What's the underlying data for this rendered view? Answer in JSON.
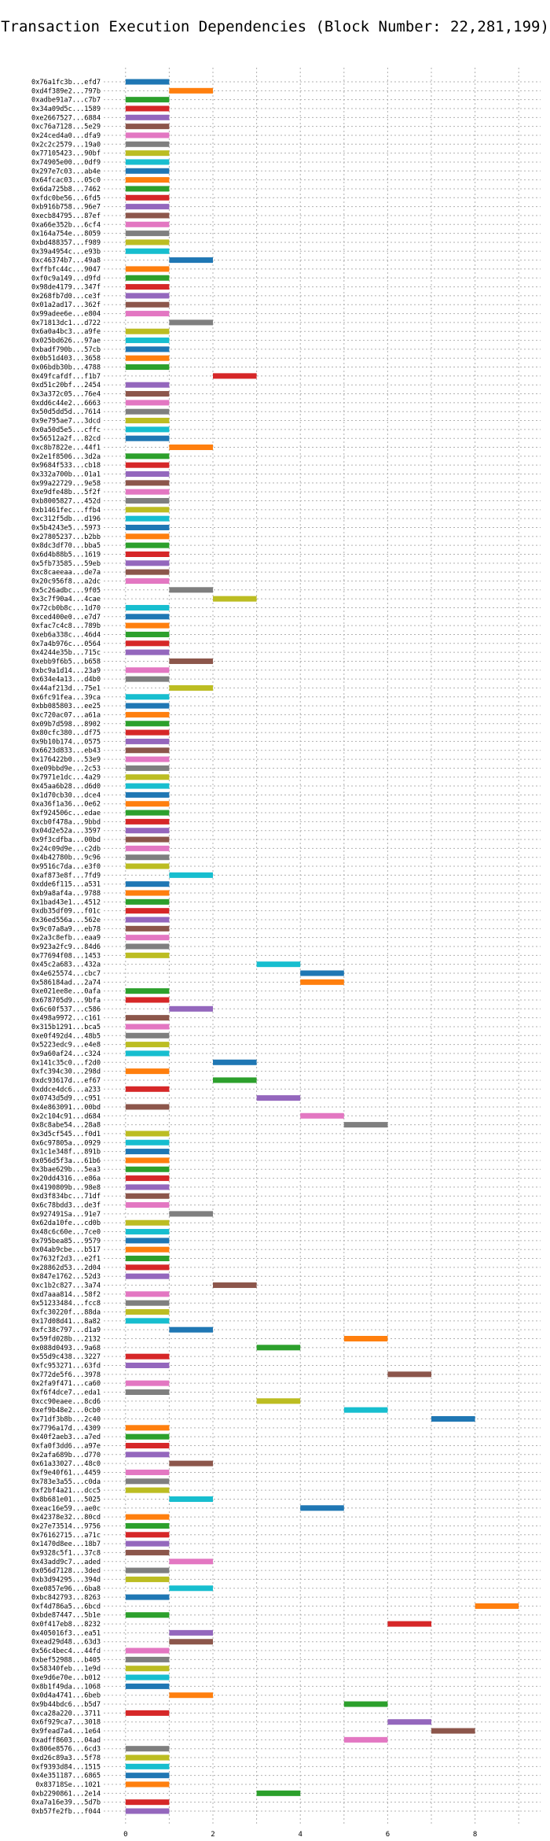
{
  "chart_data": {
    "type": "bar",
    "orientation": "horizontal-gantt",
    "title": "Transaction Execution Dependencies (Block Number: 22,281,199)",
    "xlabel": "",
    "ylabel": "",
    "xlim": [
      -0.5,
      9.5
    ],
    "x_ticks": [
      0,
      2,
      4,
      6,
      8
    ],
    "grid": true,
    "legend": "none",
    "palette": [
      "#1f77b4",
      "#ff7f0e",
      "#2ca02c",
      "#d62728",
      "#9467bd",
      "#8c564b",
      "#e377c2",
      "#7f7f7f",
      "#bcbd22",
      "#17becf"
    ],
    "bars": [
      {
        "tx": "0x76a1fc3b...efd7",
        "start": 0,
        "end": 1
      },
      {
        "tx": "0xd4f389e2...797b",
        "start": 1,
        "end": 2
      },
      {
        "tx": "0xadbe91a7...c7b7",
        "start": 0,
        "end": 1
      },
      {
        "tx": "0x34a09d5c...1589",
        "start": 0,
        "end": 1
      },
      {
        "tx": "0xe2667527...6884",
        "start": 0,
        "end": 1
      },
      {
        "tx": "0xc76a7128...5e29",
        "start": 0,
        "end": 1
      },
      {
        "tx": "0x24ced4a0...dfa9",
        "start": 0,
        "end": 1
      },
      {
        "tx": "0x2c2c2579...19a0",
        "start": 0,
        "end": 1
      },
      {
        "tx": "0x77105423...90bf",
        "start": 0,
        "end": 1
      },
      {
        "tx": "0x74905e00...0df9",
        "start": 0,
        "end": 1
      },
      {
        "tx": "0x297e7c03...ab4e",
        "start": 0,
        "end": 1
      },
      {
        "tx": "0x64fcac03...05c0",
        "start": 0,
        "end": 1
      },
      {
        "tx": "0x6da725b8...7462",
        "start": 0,
        "end": 1
      },
      {
        "tx": "0xfdc0be56...6fd5",
        "start": 0,
        "end": 1
      },
      {
        "tx": "0xb916b758...96e7",
        "start": 0,
        "end": 1
      },
      {
        "tx": "0xecb84795...87ef",
        "start": 0,
        "end": 1
      },
      {
        "tx": "0xa66e352b...6cf4",
        "start": 0,
        "end": 1
      },
      {
        "tx": "0x164a754e...8059",
        "start": 0,
        "end": 1
      },
      {
        "tx": "0xbd488357...f989",
        "start": 0,
        "end": 1
      },
      {
        "tx": "0x39a4954c...e93b",
        "start": 0,
        "end": 1
      },
      {
        "tx": "0xc46374b7...49a8",
        "start": 1,
        "end": 2
      },
      {
        "tx": "0xffbfc44c...9047",
        "start": 0,
        "end": 1
      },
      {
        "tx": "0xf0c9a149...d9fd",
        "start": 0,
        "end": 1
      },
      {
        "tx": "0x98de4179...347f",
        "start": 0,
        "end": 1
      },
      {
        "tx": "0x268fb7d0...ce3f",
        "start": 0,
        "end": 1
      },
      {
        "tx": "0x01a2ad17...362f",
        "start": 0,
        "end": 1
      },
      {
        "tx": "0x99adee6e...e804",
        "start": 0,
        "end": 1
      },
      {
        "tx": "0x71813dc1...d722",
        "start": 1,
        "end": 2
      },
      {
        "tx": "0x6a0a4bc3...a9fe",
        "start": 0,
        "end": 1
      },
      {
        "tx": "0x025bd626...97ae",
        "start": 0,
        "end": 1
      },
      {
        "tx": "0xbadf790b...57cb",
        "start": 0,
        "end": 1
      },
      {
        "tx": "0x0b51d403...3658",
        "start": 0,
        "end": 1
      },
      {
        "tx": "0x06bdb30b...4788",
        "start": 0,
        "end": 1
      },
      {
        "tx": "0x49fcafdf...f1b7",
        "start": 2,
        "end": 3
      },
      {
        "tx": "0xd51c20bf...2454",
        "start": 0,
        "end": 1
      },
      {
        "tx": "0x3a372c05...76e4",
        "start": 0,
        "end": 1
      },
      {
        "tx": "0xdd6c44e2...6663",
        "start": 0,
        "end": 1
      },
      {
        "tx": "0x50d5dd5d...7614",
        "start": 0,
        "end": 1
      },
      {
        "tx": "0x9e795ae7...3dcd",
        "start": 0,
        "end": 1
      },
      {
        "tx": "0x0a50d5e5...cffc",
        "start": 0,
        "end": 1
      },
      {
        "tx": "0x56512a2f...82cd",
        "start": 0,
        "end": 1
      },
      {
        "tx": "0xc8b7822e...44f1",
        "start": 1,
        "end": 2
      },
      {
        "tx": "0x2e1f8506...3d2a",
        "start": 0,
        "end": 1
      },
      {
        "tx": "0x9684f533...cb18",
        "start": 0,
        "end": 1
      },
      {
        "tx": "0x332a700b...01a1",
        "start": 0,
        "end": 1
      },
      {
        "tx": "0x99a22729...9e58",
        "start": 0,
        "end": 1
      },
      {
        "tx": "0xe9dfe48b...5f2f",
        "start": 0,
        "end": 1
      },
      {
        "tx": "0xb8005827...452d",
        "start": 0,
        "end": 1
      },
      {
        "tx": "0xb1461fec...ffb4",
        "start": 0,
        "end": 1
      },
      {
        "tx": "0xc312f5db...d196",
        "start": 0,
        "end": 1
      },
      {
        "tx": "0x5b4243e5...5973",
        "start": 0,
        "end": 1
      },
      {
        "tx": "0x27805237...b2bb",
        "start": 0,
        "end": 1
      },
      {
        "tx": "0x8dc3df70...bba5",
        "start": 0,
        "end": 1
      },
      {
        "tx": "0x6d4b88b5...1619",
        "start": 0,
        "end": 1
      },
      {
        "tx": "0x5fb73585...59eb",
        "start": 0,
        "end": 1
      },
      {
        "tx": "0xc8caeeaa...de7a",
        "start": 0,
        "end": 1
      },
      {
        "tx": "0x20c956f8...a2dc",
        "start": 0,
        "end": 1
      },
      {
        "tx": "0x5c26adbc...9f05",
        "start": 1,
        "end": 2
      },
      {
        "tx": "0x3c7f90a4...4cae",
        "start": 2,
        "end": 3
      },
      {
        "tx": "0x72cb0b8c...1d70",
        "start": 0,
        "end": 1
      },
      {
        "tx": "0xced400e0...e7d7",
        "start": 0,
        "end": 1
      },
      {
        "tx": "0xfac7c4c8...789b",
        "start": 0,
        "end": 1
      },
      {
        "tx": "0xeb6a338c...46d4",
        "start": 0,
        "end": 1
      },
      {
        "tx": "0x7a4b976c...0564",
        "start": 0,
        "end": 1
      },
      {
        "tx": "0x4244e35b...715c",
        "start": 0,
        "end": 1
      },
      {
        "tx": "0xebb9f6b5...b658",
        "start": 1,
        "end": 2
      },
      {
        "tx": "0xbc9a1d14...23a9",
        "start": 0,
        "end": 1
      },
      {
        "tx": "0x634e4a13...d4b0",
        "start": 0,
        "end": 1
      },
      {
        "tx": "0x44af213d...75e1",
        "start": 1,
        "end": 2
      },
      {
        "tx": "0x6fc91fea...39ca",
        "start": 0,
        "end": 1
      },
      {
        "tx": "0xbb085803...ee25",
        "start": 0,
        "end": 1
      },
      {
        "tx": "0xc720ac07...a61a",
        "start": 0,
        "end": 1
      },
      {
        "tx": "0x09b7d598...8902",
        "start": 0,
        "end": 1
      },
      {
        "tx": "0x80cfc380...df75",
        "start": 0,
        "end": 1
      },
      {
        "tx": "0x9b10b174...0575",
        "start": 0,
        "end": 1
      },
      {
        "tx": "0x6623d833...eb43",
        "start": 0,
        "end": 1
      },
      {
        "tx": "0x176422b0...53e9",
        "start": 0,
        "end": 1
      },
      {
        "tx": "0xe09bbd9e...2c53",
        "start": 0,
        "end": 1
      },
      {
        "tx": "0x7971e1dc...4a29",
        "start": 0,
        "end": 1
      },
      {
        "tx": "0x45aa6b28...d6d0",
        "start": 0,
        "end": 1
      },
      {
        "tx": "0x1d70cb30...dce4",
        "start": 0,
        "end": 1
      },
      {
        "tx": "0xa36f1a36...0e62",
        "start": 0,
        "end": 1
      },
      {
        "tx": "0xf924506c...edae",
        "start": 0,
        "end": 1
      },
      {
        "tx": "0xcb0f478a...9bbd",
        "start": 0,
        "end": 1
      },
      {
        "tx": "0x04d2e52a...3597",
        "start": 0,
        "end": 1
      },
      {
        "tx": "0x9f3cdfba...00bd",
        "start": 0,
        "end": 1
      },
      {
        "tx": "0x24c09d9e...c2db",
        "start": 0,
        "end": 1
      },
      {
        "tx": "0x4b42780b...9c96",
        "start": 0,
        "end": 1
      },
      {
        "tx": "0x9516c7da...e3f0",
        "start": 0,
        "end": 1
      },
      {
        "tx": "0xaf873e8f...7fd9",
        "start": 1,
        "end": 2
      },
      {
        "tx": "0xdde6f115...a531",
        "start": 0,
        "end": 1
      },
      {
        "tx": "0xb9a8af4a...9788",
        "start": 0,
        "end": 1
      },
      {
        "tx": "0x1bad43e1...4512",
        "start": 0,
        "end": 1
      },
      {
        "tx": "0xdb35df09...f01c",
        "start": 0,
        "end": 1
      },
      {
        "tx": "0x36ed556a...562e",
        "start": 0,
        "end": 1
      },
      {
        "tx": "0x9c07a8a9...eb78",
        "start": 0,
        "end": 1
      },
      {
        "tx": "0x2a3c8efb...eaa9",
        "start": 0,
        "end": 1
      },
      {
        "tx": "0x923a2fc9...84d6",
        "start": 0,
        "end": 1
      },
      {
        "tx": "0x77694f08...1453",
        "start": 0,
        "end": 1
      },
      {
        "tx": "0x45c2a683...432a",
        "start": 3,
        "end": 4
      },
      {
        "tx": "0x4e625574...cbc7",
        "start": 4,
        "end": 5
      },
      {
        "tx": "0x586184ad...2a74",
        "start": 4,
        "end": 5
      },
      {
        "tx": "0xe021ee8e...0afa",
        "start": 0,
        "end": 1
      },
      {
        "tx": "0x678705d9...9bfa",
        "start": 0,
        "end": 1
      },
      {
        "tx": "0x6c60f537...c586",
        "start": 1,
        "end": 2
      },
      {
        "tx": "0x498a9972...c161",
        "start": 0,
        "end": 1
      },
      {
        "tx": "0x315b1291...bca5",
        "start": 0,
        "end": 1
      },
      {
        "tx": "0xe0f492d4...48b5",
        "start": 0,
        "end": 1
      },
      {
        "tx": "0x5223edc9...e4e8",
        "start": 0,
        "end": 1
      },
      {
        "tx": "0x9a60af24...c324",
        "start": 0,
        "end": 1
      },
      {
        "tx": "0x141c35c0...f2d0",
        "start": 2,
        "end": 3
      },
      {
        "tx": "0xfc394c30...298d",
        "start": 0,
        "end": 1
      },
      {
        "tx": "0xdc93617d...ef67",
        "start": 2,
        "end": 3
      },
      {
        "tx": "0xddce4dc6...a233",
        "start": 0,
        "end": 1
      },
      {
        "tx": "0x0743d5d9...c951",
        "start": 3,
        "end": 4
      },
      {
        "tx": "0x4e863091...00bd",
        "start": 0,
        "end": 1
      },
      {
        "tx": "0x2c104c91...d684",
        "start": 4,
        "end": 5
      },
      {
        "tx": "0x8c8abe54...28a8",
        "start": 5,
        "end": 6
      },
      {
        "tx": "0x3d5cf545...f0d1",
        "start": 0,
        "end": 1
      },
      {
        "tx": "0x6c97805a...0929",
        "start": 0,
        "end": 1
      },
      {
        "tx": "0x1c1e348f...891b",
        "start": 0,
        "end": 1
      },
      {
        "tx": "0x056d5f3a...61b6",
        "start": 0,
        "end": 1
      },
      {
        "tx": "0x3bae629b...5ea3",
        "start": 0,
        "end": 1
      },
      {
        "tx": "0x20dd4316...e86a",
        "start": 0,
        "end": 1
      },
      {
        "tx": "0x4190809b...98e8",
        "start": 0,
        "end": 1
      },
      {
        "tx": "0xd3f834bc...71df",
        "start": 0,
        "end": 1
      },
      {
        "tx": "0x6c78bdd3...de3f",
        "start": 0,
        "end": 1
      },
      {
        "tx": "0x927491Sa...91e7",
        "start": 1,
        "end": 2
      },
      {
        "tx": "0x62da10fe...cd0b",
        "start": 0,
        "end": 1
      },
      {
        "tx": "0x48c6c60e...7ce0",
        "start": 0,
        "end": 1
      },
      {
        "tx": "0x795bea85...9579",
        "start": 0,
        "end": 1
      },
      {
        "tx": "0x04ab9cbe...b517",
        "start": 0,
        "end": 1
      },
      {
        "tx": "0x7632f2d3...e2f1",
        "start": 0,
        "end": 1
      },
      {
        "tx": "0x28862d53...2d04",
        "start": 0,
        "end": 1
      },
      {
        "tx": "0x847e1762...52d3",
        "start": 0,
        "end": 1
      },
      {
        "tx": "0xc1b2c827...3a74",
        "start": 2,
        "end": 3
      },
      {
        "tx": "0xd7aaa814...58f2",
        "start": 0,
        "end": 1
      },
      {
        "tx": "0x51233484...fcc8",
        "start": 0,
        "end": 1
      },
      {
        "tx": "0xfc30220f...88da",
        "start": 0,
        "end": 1
      },
      {
        "tx": "0x17d08d41...8a82",
        "start": 0,
        "end": 1
      },
      {
        "tx": "0xfc38c797...d1a9",
        "start": 1,
        "end": 2
      },
      {
        "tx": "0x59fd028b...2132",
        "start": 5,
        "end": 6
      },
      {
        "tx": "0x088d0493...9a68",
        "start": 3,
        "end": 4
      },
      {
        "tx": "0x55d9c438...3227",
        "start": 0,
        "end": 1
      },
      {
        "tx": "0xfc953271...63fd",
        "start": 0,
        "end": 1
      },
      {
        "tx": "0x772de5f6...3978",
        "start": 6,
        "end": 7
      },
      {
        "tx": "0x2fa9f471...ca60",
        "start": 0,
        "end": 1
      },
      {
        "tx": "0xf6f4dce7...eda1",
        "start": 0,
        "end": 1
      },
      {
        "tx": "0xcc90eaee...8cd6",
        "start": 3,
        "end": 4
      },
      {
        "tx": "0xef9b48e2...0cb0",
        "start": 5,
        "end": 6
      },
      {
        "tx": "0x71df3b8b...2c40",
        "start": 7,
        "end": 8
      },
      {
        "tx": "0x7796a17d...4309",
        "start": 0,
        "end": 1
      },
      {
        "tx": "0x40f2aeb3...a7ed",
        "start": 0,
        "end": 1
      },
      {
        "tx": "0xfa0f3dd6...a97e",
        "start": 0,
        "end": 1
      },
      {
        "tx": "0x2afa689b...d770",
        "start": 0,
        "end": 1
      },
      {
        "tx": "0x61a33027...48c0",
        "start": 1,
        "end": 2
      },
      {
        "tx": "0xf9e40f61...4459",
        "start": 0,
        "end": 1
      },
      {
        "tx": "0x783e3a55...c0da",
        "start": 0,
        "end": 1
      },
      {
        "tx": "0xf2bf4a21...dcc5",
        "start": 0,
        "end": 1
      },
      {
        "tx": "0x8b681e01...5025",
        "start": 1,
        "end": 2
      },
      {
        "tx": "0xeac16e59...ae0c",
        "start": 4,
        "end": 5
      },
      {
        "tx": "0x42378e32...80cd",
        "start": 0,
        "end": 1
      },
      {
        "tx": "0x27e73514...9756",
        "start": 0,
        "end": 1
      },
      {
        "tx": "0x76162715...a71c",
        "start": 0,
        "end": 1
      },
      {
        "tx": "0x1470d8ee...18b7",
        "start": 0,
        "end": 1
      },
      {
        "tx": "0x9328c5f1...37c8",
        "start": 0,
        "end": 1
      },
      {
        "tx": "0x43add9c7...aded",
        "start": 1,
        "end": 2
      },
      {
        "tx": "0x056d7128...3ded",
        "start": 0,
        "end": 1
      },
      {
        "tx": "0xb3d94295...394d",
        "start": 0,
        "end": 1
      },
      {
        "tx": "0xe0857e96...6ba8",
        "start": 1,
        "end": 2
      },
      {
        "tx": "0xbc842793...8263",
        "start": 0,
        "end": 1
      },
      {
        "tx": "0xf4d786a5...6bcd",
        "start": 8,
        "end": 9
      },
      {
        "tx": "0xbde87447...5b1e",
        "start": 0,
        "end": 1
      },
      {
        "tx": "0x0f417eb8...8232",
        "start": 6,
        "end": 7
      },
      {
        "tx": "0x405016f3...ea51",
        "start": 1,
        "end": 2
      },
      {
        "tx": "0xead29d48...63d3",
        "start": 1,
        "end": 2
      },
      {
        "tx": "0x56c4bec4...44fd",
        "start": 0,
        "end": 1
      },
      {
        "tx": "0xbef52988...b405",
        "start": 0,
        "end": 1
      },
      {
        "tx": "0x58340feb...1e9d",
        "start": 0,
        "end": 1
      },
      {
        "tx": "0xe9d6e70e...b012",
        "start": 0,
        "end": 1
      },
      {
        "tx": "0x8b1f49da...1068",
        "start": 0,
        "end": 1
      },
      {
        "tx": "0x0d4a4741...6beb",
        "start": 1,
        "end": 2
      },
      {
        "tx": "0x9b44bdc6...b5d7",
        "start": 5,
        "end": 6
      },
      {
        "tx": "0xca28a220...3711",
        "start": 0,
        "end": 1
      },
      {
        "tx": "0x6f929ca7...3018",
        "start": 6,
        "end": 7
      },
      {
        "tx": "0x9fead7a4...1e64",
        "start": 7,
        "end": 8
      },
      {
        "tx": "0xadff8603...04ad",
        "start": 5,
        "end": 6
      },
      {
        "tx": "0x806e8576...6cd3",
        "start": 0,
        "end": 1
      },
      {
        "tx": "0xd26c89a3...5f78",
        "start": 0,
        "end": 1
      },
      {
        "tx": "0xf9393d84...1515",
        "start": 0,
        "end": 1
      },
      {
        "tx": "0x4e351187...6865",
        "start": 0,
        "end": 1
      },
      {
        "tx": "0x83718Se...1021",
        "start": 0,
        "end": 1
      },
      {
        "tx": "0xb2290861...2e14",
        "start": 3,
        "end": 4
      },
      {
        "tx": "0xa7a16e39...5d7b",
        "start": 0,
        "end": 1
      },
      {
        "tx": "0xb57fe2fb...f044",
        "start": 0,
        "end": 1
      }
    ]
  }
}
